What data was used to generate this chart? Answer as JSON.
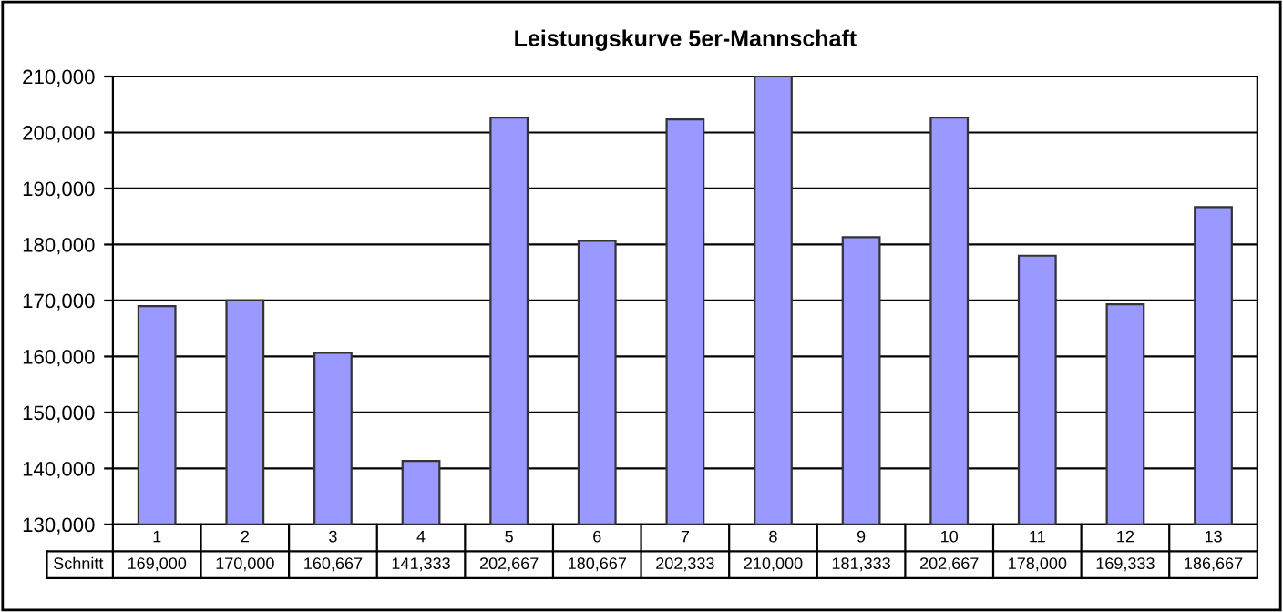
{
  "chart_data": {
    "type": "bar",
    "title": "Leistungskurve 5er-Mannschaft",
    "categories": [
      "1",
      "2",
      "3",
      "4",
      "5",
      "6",
      "7",
      "8",
      "9",
      "10",
      "11",
      "12",
      "13"
    ],
    "series": [
      {
        "name": "Schnitt",
        "color": "#9999ff",
        "values": [
          169000,
          170000,
          160667,
          141333,
          202667,
          180667,
          202333,
          210000,
          181333,
          202667,
          178000,
          169333,
          186667
        ],
        "value_labels": [
          "169,000",
          "170,000",
          "160,667",
          "141,333",
          "202,667",
          "180,667",
          "202,333",
          "210,000",
          "181,333",
          "202,667",
          "178,000",
          "169,333",
          "186,667"
        ]
      }
    ],
    "ylim": [
      130000,
      210000
    ],
    "yticks": [
      {
        "value": 130000,
        "label": "130,000"
      },
      {
        "value": 140000,
        "label": "140,000"
      },
      {
        "value": 150000,
        "label": "150,000"
      },
      {
        "value": 160000,
        "label": "160,000"
      },
      {
        "value": 170000,
        "label": "170,000"
      },
      {
        "value": 180000,
        "label": "180,000"
      },
      {
        "value": 190000,
        "label": "190,000"
      },
      {
        "value": 200000,
        "label": "200,000"
      },
      {
        "value": 210000,
        "label": "210,000"
      }
    ],
    "grid": "y",
    "legend": false
  }
}
